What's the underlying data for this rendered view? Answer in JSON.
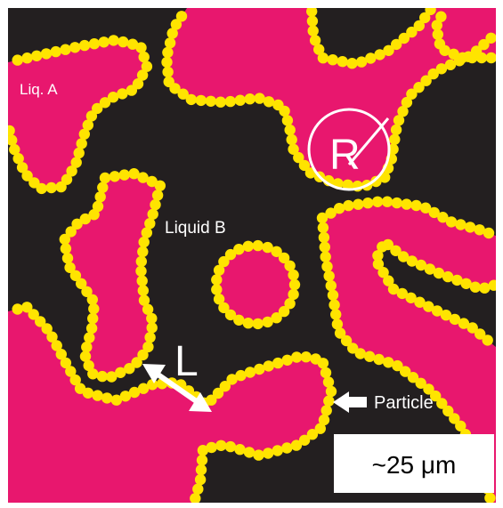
{
  "labels": {
    "liquid_a": "Liq. A",
    "liquid_b": "Liquid B",
    "radius": "R",
    "length": "L",
    "particle": "Particle",
    "scale": "~25 μm"
  },
  "colors": {
    "background": "#231f20",
    "liquid_a": "#e8176e",
    "particle": "#ffe400",
    "annotation": "#ffffff",
    "frame": "#ffffff"
  },
  "icons": {
    "particle_pointer": "left-arrow-icon",
    "length_marker": "double-headed-arrow-icon",
    "radius_marker": "circle-with-radius-icon"
  }
}
